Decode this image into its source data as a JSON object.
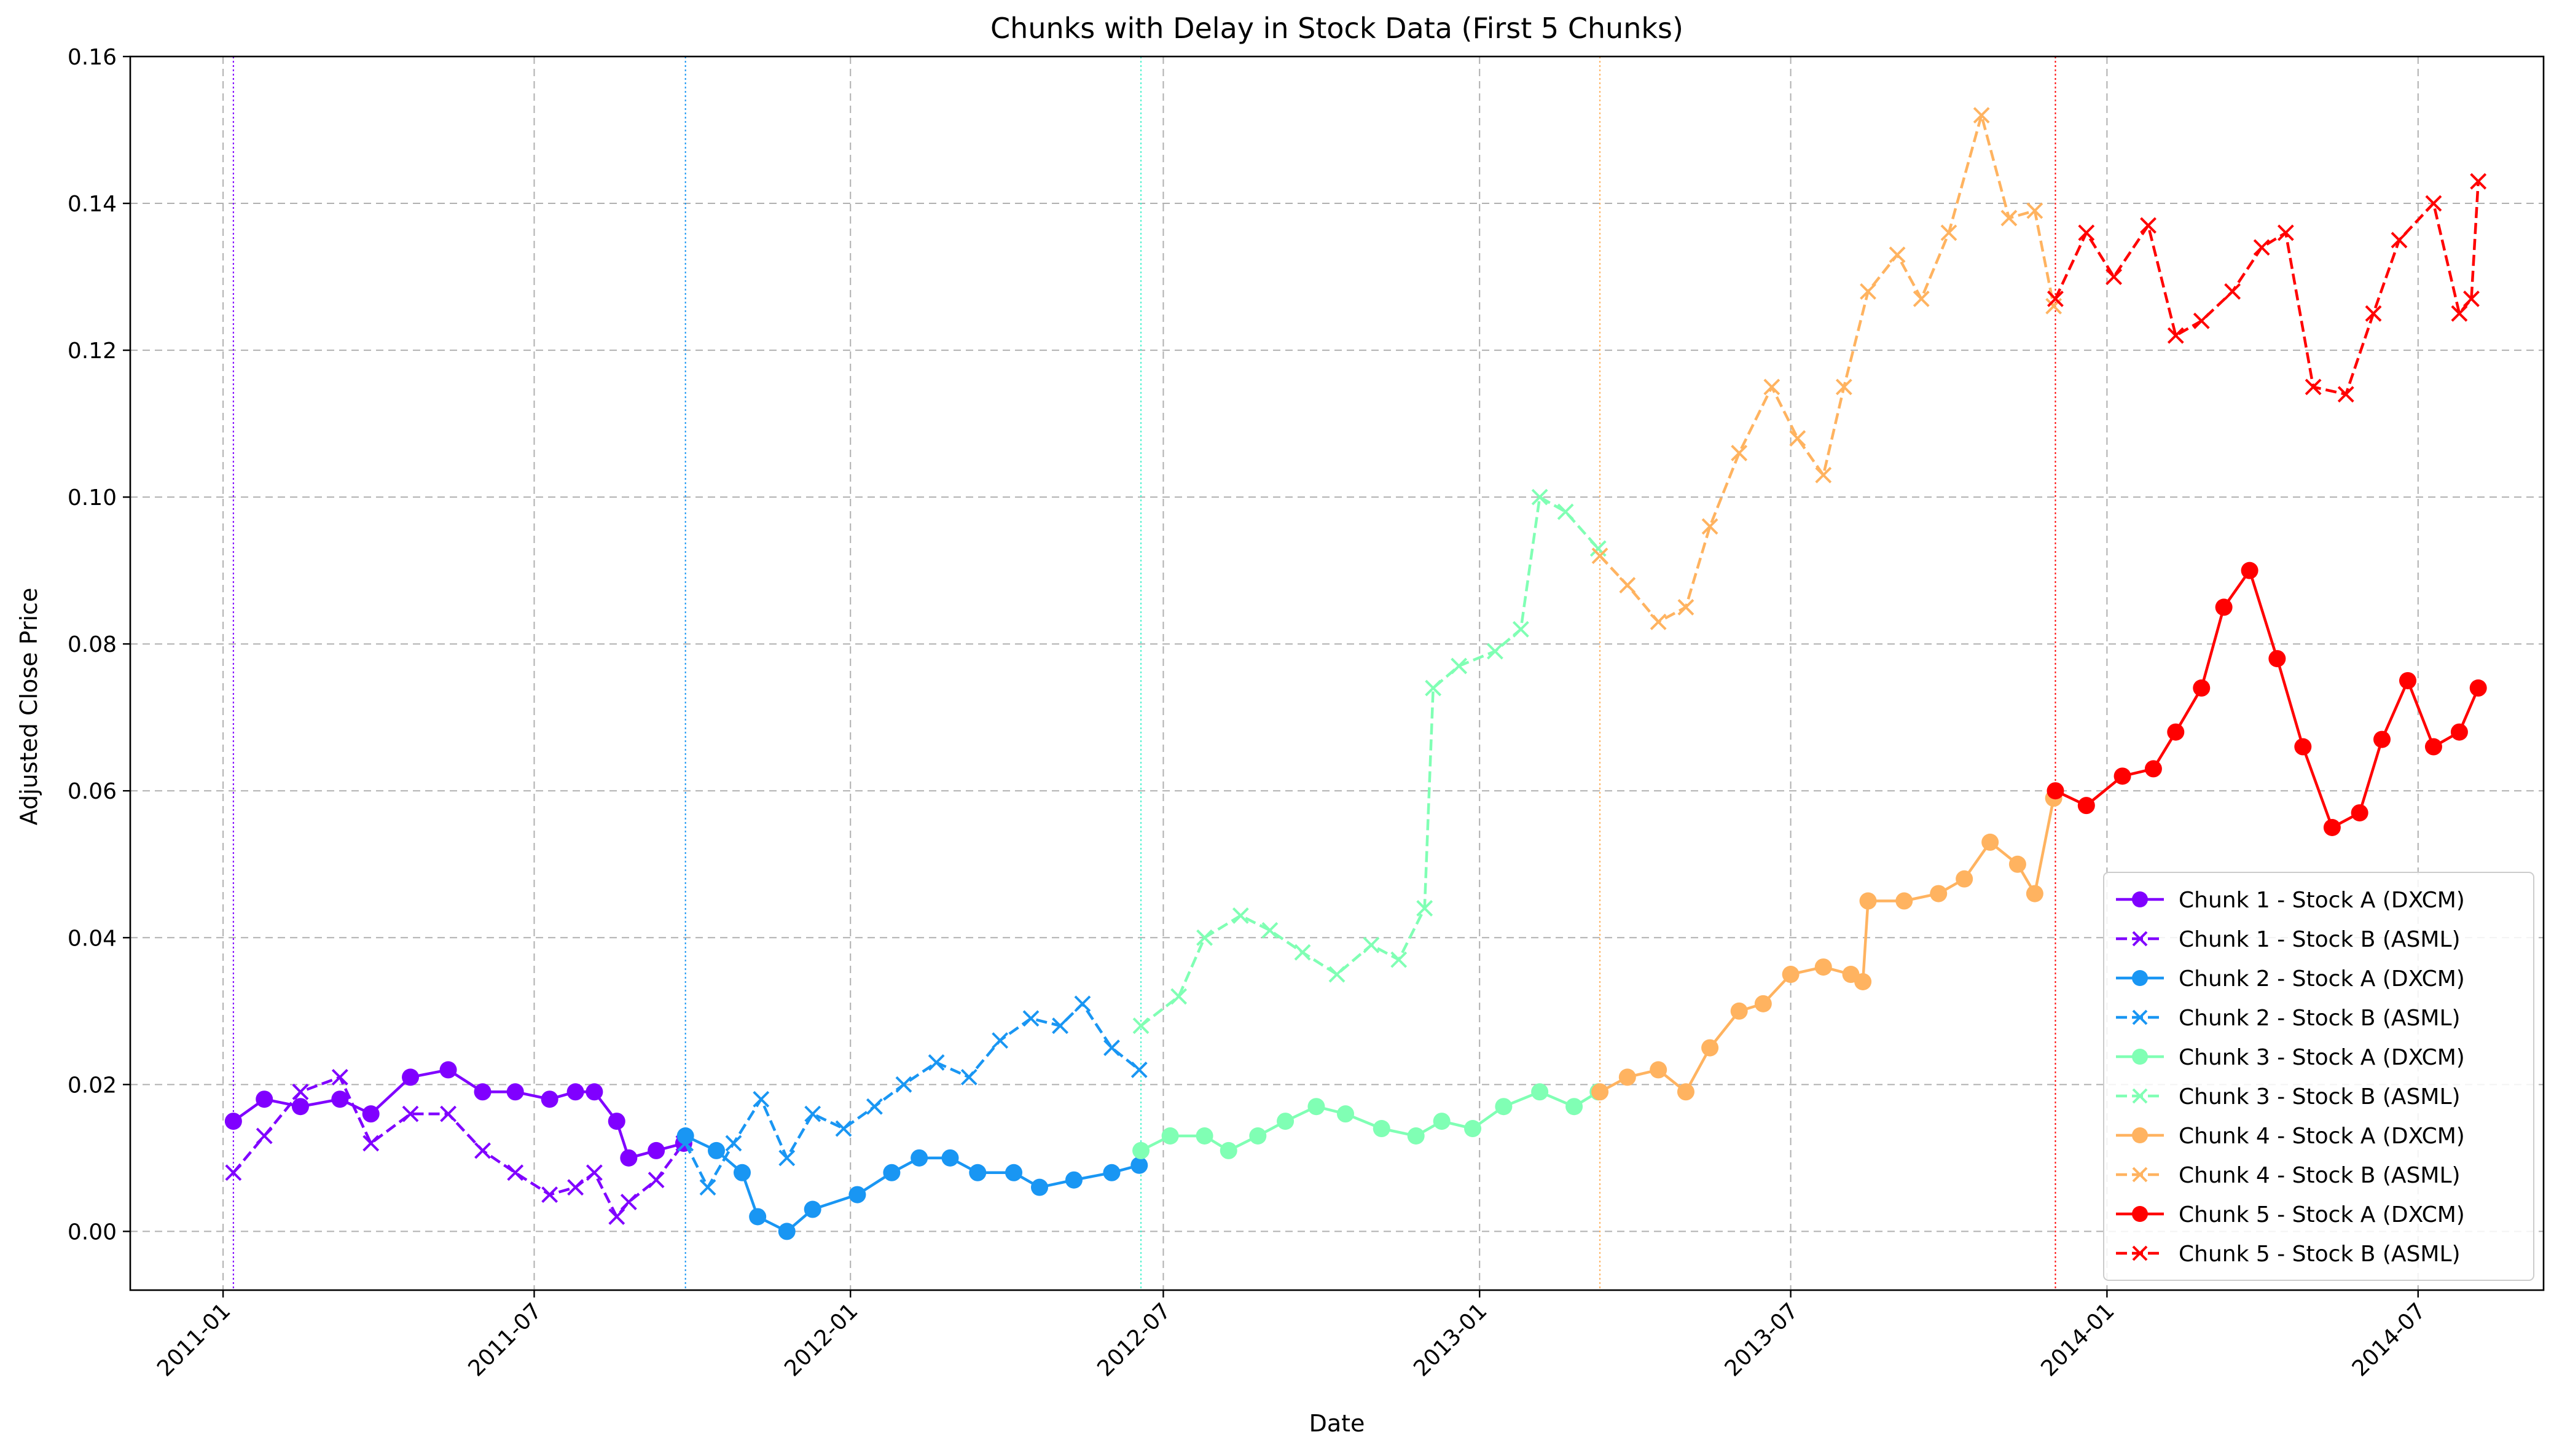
{
  "chart_data": {
    "type": "line",
    "title": "Chunks with Delay in Stock Data (First 5 Chunks)",
    "xlabel": "Date",
    "ylabel": "Adjusted Close Price",
    "xlim": [
      "2010-11-08",
      "2014-09-12"
    ],
    "ylim": [
      -0.008,
      0.16
    ],
    "x_ticks": [
      "2011-01",
      "2011-07",
      "2012-01",
      "2012-07",
      "2013-01",
      "2013-07",
      "2014-01",
      "2014-07"
    ],
    "y_ticks": [
      0.0,
      0.02,
      0.04,
      0.06,
      0.08,
      0.1,
      0.12,
      0.14,
      0.16
    ],
    "grid": true,
    "legend_position": "lower-right",
    "chunk_boundaries": [
      {
        "date": "2011-01-07",
        "color": "#8000ff"
      },
      {
        "date": "2011-09-27",
        "color": "#1996f3"
      },
      {
        "date": "2012-06-18",
        "color": "#4df3ce"
      },
      {
        "date": "2013-03-12",
        "color": "#ffb360"
      },
      {
        "date": "2013-12-02",
        "color": "#ff0000"
      }
    ],
    "series": [
      {
        "name": "Chunk 1 - Stock A (DXCM)",
        "color": "#8000ff",
        "style": "solid",
        "marker": "circle",
        "points": [
          [
            "2011-01-07",
            0.015
          ],
          [
            "2011-01-25",
            0.018
          ],
          [
            "2011-02-15",
            0.017
          ],
          [
            "2011-03-10",
            0.018
          ],
          [
            "2011-03-28",
            0.016
          ],
          [
            "2011-04-20",
            0.021
          ],
          [
            "2011-05-12",
            0.022
          ],
          [
            "2011-06-01",
            0.019
          ],
          [
            "2011-06-20",
            0.019
          ],
          [
            "2011-07-10",
            0.018
          ],
          [
            "2011-07-25",
            0.019
          ],
          [
            "2011-08-05",
            0.019
          ],
          [
            "2011-08-18",
            0.015
          ],
          [
            "2011-08-25",
            0.01
          ],
          [
            "2011-09-10",
            0.011
          ],
          [
            "2011-09-26",
            0.012
          ]
        ]
      },
      {
        "name": "Chunk 1 - Stock B (ASML)",
        "color": "#8000ff",
        "style": "dashed",
        "marker": "x",
        "points": [
          [
            "2011-01-07",
            0.008
          ],
          [
            "2011-01-25",
            0.013
          ],
          [
            "2011-02-15",
            0.019
          ],
          [
            "2011-03-10",
            0.021
          ],
          [
            "2011-03-28",
            0.012
          ],
          [
            "2011-04-20",
            0.016
          ],
          [
            "2011-05-12",
            0.016
          ],
          [
            "2011-06-01",
            0.011
          ],
          [
            "2011-06-20",
            0.008
          ],
          [
            "2011-07-10",
            0.005
          ],
          [
            "2011-07-25",
            0.006
          ],
          [
            "2011-08-05",
            0.008
          ],
          [
            "2011-08-18",
            0.002
          ],
          [
            "2011-08-25",
            0.004
          ],
          [
            "2011-09-10",
            0.007
          ],
          [
            "2011-09-26",
            0.012
          ]
        ]
      },
      {
        "name": "Chunk 2 - Stock A (DXCM)",
        "color": "#1996f3",
        "style": "solid",
        "marker": "circle",
        "points": [
          [
            "2011-09-27",
            0.013
          ],
          [
            "2011-10-15",
            0.011
          ],
          [
            "2011-10-30",
            0.008
          ],
          [
            "2011-11-08",
            0.002
          ],
          [
            "2011-11-25",
            0.0
          ],
          [
            "2011-12-10",
            0.003
          ],
          [
            "2012-01-05",
            0.005
          ],
          [
            "2012-01-25",
            0.008
          ],
          [
            "2012-02-10",
            0.01
          ],
          [
            "2012-02-28",
            0.01
          ],
          [
            "2012-03-15",
            0.008
          ],
          [
            "2012-04-05",
            0.008
          ],
          [
            "2012-04-20",
            0.006
          ],
          [
            "2012-05-10",
            0.007
          ],
          [
            "2012-06-01",
            0.008
          ],
          [
            "2012-06-17",
            0.009
          ]
        ]
      },
      {
        "name": "Chunk 2 - Stock B (ASML)",
        "color": "#1996f3",
        "style": "dashed",
        "marker": "x",
        "points": [
          [
            "2011-09-27",
            0.012
          ],
          [
            "2011-10-10",
            0.006
          ],
          [
            "2011-10-25",
            0.012
          ],
          [
            "2011-11-10",
            0.018
          ],
          [
            "2011-11-25",
            0.01
          ],
          [
            "2011-12-10",
            0.016
          ],
          [
            "2011-12-28",
            0.014
          ],
          [
            "2012-01-15",
            0.017
          ],
          [
            "2012-02-01",
            0.02
          ],
          [
            "2012-02-20",
            0.023
          ],
          [
            "2012-03-10",
            0.021
          ],
          [
            "2012-03-28",
            0.026
          ],
          [
            "2012-04-15",
            0.029
          ],
          [
            "2012-05-02",
            0.028
          ],
          [
            "2012-05-15",
            0.031
          ],
          [
            "2012-06-01",
            0.025
          ],
          [
            "2012-06-17",
            0.022
          ]
        ]
      },
      {
        "name": "Chunk 3 - Stock A (DXCM)",
        "color": "#80ffb4",
        "style": "solid",
        "marker": "circle",
        "points": [
          [
            "2012-06-18",
            0.011
          ],
          [
            "2012-07-05",
            0.013
          ],
          [
            "2012-07-25",
            0.013
          ],
          [
            "2012-08-08",
            0.011
          ],
          [
            "2012-08-25",
            0.013
          ],
          [
            "2012-09-10",
            0.015
          ],
          [
            "2012-09-28",
            0.017
          ],
          [
            "2012-10-15",
            0.016
          ],
          [
            "2012-11-05",
            0.014
          ],
          [
            "2012-11-25",
            0.013
          ],
          [
            "2012-12-10",
            0.015
          ],
          [
            "2012-12-28",
            0.014
          ],
          [
            "2013-01-15",
            0.017
          ],
          [
            "2013-02-05",
            0.019
          ],
          [
            "2013-02-25",
            0.017
          ],
          [
            "2013-03-11",
            0.019
          ]
        ]
      },
      {
        "name": "Chunk 3 - Stock B (ASML)",
        "color": "#80ffb4",
        "style": "dashed",
        "marker": "x",
        "points": [
          [
            "2012-06-18",
            0.028
          ],
          [
            "2012-07-10",
            0.032
          ],
          [
            "2012-07-25",
            0.04
          ],
          [
            "2012-08-15",
            0.043
          ],
          [
            "2012-09-01",
            0.041
          ],
          [
            "2012-09-20",
            0.038
          ],
          [
            "2012-10-10",
            0.035
          ],
          [
            "2012-10-30",
            0.039
          ],
          [
            "2012-11-15",
            0.037
          ],
          [
            "2012-11-30",
            0.044
          ],
          [
            "2012-12-05",
            0.074
          ],
          [
            "2012-12-20",
            0.077
          ],
          [
            "2013-01-10",
            0.079
          ],
          [
            "2013-01-25",
            0.082
          ],
          [
            "2013-02-05",
            0.1
          ],
          [
            "2013-02-20",
            0.098
          ],
          [
            "2013-03-11",
            0.093
          ]
        ]
      },
      {
        "name": "Chunk 4 - Stock A (DXCM)",
        "color": "#ffb360",
        "style": "solid",
        "marker": "circle",
        "points": [
          [
            "2013-03-12",
            0.019
          ],
          [
            "2013-03-28",
            0.021
          ],
          [
            "2013-04-15",
            0.022
          ],
          [
            "2013-05-01",
            0.019
          ],
          [
            "2013-05-15",
            0.025
          ],
          [
            "2013-06-01",
            0.03
          ],
          [
            "2013-06-15",
            0.031
          ],
          [
            "2013-07-01",
            0.035
          ],
          [
            "2013-07-20",
            0.036
          ],
          [
            "2013-08-05",
            0.035
          ],
          [
            "2013-08-12",
            0.034
          ],
          [
            "2013-08-15",
            0.045
          ],
          [
            "2013-09-05",
            0.045
          ],
          [
            "2013-09-25",
            0.046
          ],
          [
            "2013-10-10",
            0.048
          ],
          [
            "2013-10-25",
            0.053
          ],
          [
            "2013-11-10",
            0.05
          ],
          [
            "2013-11-20",
            0.046
          ],
          [
            "2013-12-01",
            0.059
          ]
        ]
      },
      {
        "name": "Chunk 4 - Stock B (ASML)",
        "color": "#ffb360",
        "style": "dashed",
        "marker": "x",
        "points": [
          [
            "2013-03-12",
            0.092
          ],
          [
            "2013-03-28",
            0.088
          ],
          [
            "2013-04-15",
            0.083
          ],
          [
            "2013-05-01",
            0.085
          ],
          [
            "2013-05-15",
            0.096
          ],
          [
            "2013-06-01",
            0.106
          ],
          [
            "2013-06-20",
            0.115
          ],
          [
            "2013-07-05",
            0.108
          ],
          [
            "2013-07-20",
            0.103
          ],
          [
            "2013-08-01",
            0.115
          ],
          [
            "2013-08-15",
            0.128
          ],
          [
            "2013-09-01",
            0.133
          ],
          [
            "2013-09-15",
            0.127
          ],
          [
            "2013-10-01",
            0.136
          ],
          [
            "2013-10-20",
            0.152
          ],
          [
            "2013-11-05",
            0.138
          ],
          [
            "2013-11-20",
            0.139
          ],
          [
            "2013-12-01",
            0.126
          ]
        ]
      },
      {
        "name": "Chunk 5 - Stock A (DXCM)",
        "color": "#ff0000",
        "style": "solid",
        "marker": "circle",
        "points": [
          [
            "2013-12-02",
            0.06
          ],
          [
            "2013-12-20",
            0.058
          ],
          [
            "2014-01-10",
            0.062
          ],
          [
            "2014-01-28",
            0.063
          ],
          [
            "2014-02-10",
            0.068
          ],
          [
            "2014-02-25",
            0.074
          ],
          [
            "2014-03-10",
            0.085
          ],
          [
            "2014-03-25",
            0.09
          ],
          [
            "2014-04-10",
            0.078
          ],
          [
            "2014-04-25",
            0.066
          ],
          [
            "2014-05-12",
            0.055
          ],
          [
            "2014-05-28",
            0.057
          ],
          [
            "2014-06-10",
            0.067
          ],
          [
            "2014-06-25",
            0.075
          ],
          [
            "2014-07-10",
            0.066
          ],
          [
            "2014-07-25",
            0.068
          ],
          [
            "2014-08-05",
            0.074
          ]
        ]
      },
      {
        "name": "Chunk 5 - Stock B (ASML)",
        "color": "#ff0000",
        "style": "dashed",
        "marker": "x",
        "points": [
          [
            "2013-12-02",
            0.127
          ],
          [
            "2013-12-20",
            0.136
          ],
          [
            "2014-01-05",
            0.13
          ],
          [
            "2014-01-25",
            0.137
          ],
          [
            "2014-02-10",
            0.122
          ],
          [
            "2014-02-25",
            0.124
          ],
          [
            "2014-03-15",
            0.128
          ],
          [
            "2014-04-01",
            0.134
          ],
          [
            "2014-04-15",
            0.136
          ],
          [
            "2014-05-01",
            0.115
          ],
          [
            "2014-05-20",
            0.114
          ],
          [
            "2014-06-05",
            0.125
          ],
          [
            "2014-06-20",
            0.135
          ],
          [
            "2014-07-10",
            0.14
          ],
          [
            "2014-07-25",
            0.125
          ],
          [
            "2014-08-01",
            0.127
          ],
          [
            "2014-08-05",
            0.143
          ]
        ]
      }
    ]
  }
}
